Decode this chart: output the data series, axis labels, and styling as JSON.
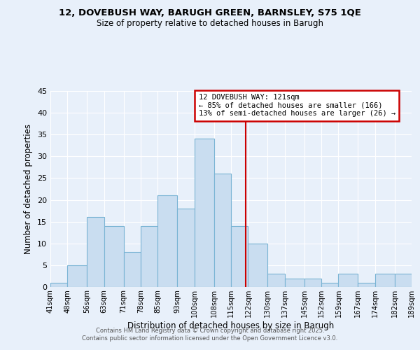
{
  "title": "12, DOVEBUSH WAY, BARUGH GREEN, BARNSLEY, S75 1QE",
  "subtitle": "Size of property relative to detached houses in Barugh",
  "xlabel": "Distribution of detached houses by size in Barugh",
  "ylabel": "Number of detached properties",
  "bin_edges": [
    41,
    48,
    56,
    63,
    71,
    78,
    85,
    93,
    100,
    108,
    115,
    122,
    130,
    137,
    145,
    152,
    159,
    167,
    174,
    182,
    189
  ],
  "counts": [
    1,
    5,
    16,
    14,
    8,
    14,
    21,
    18,
    34,
    26,
    14,
    10,
    3,
    2,
    2,
    1,
    3,
    1,
    3,
    3
  ],
  "bar_color": "#c9ddf0",
  "bar_edge_color": "#7ab4d4",
  "vline_x": 121,
  "vline_color": "#cc0000",
  "annotation_lines": [
    "12 DOVEBUSH WAY: 121sqm",
    "← 85% of detached houses are smaller (166)",
    "13% of semi-detached houses are larger (26) →"
  ],
  "annotation_box_color": "#cc0000",
  "annotation_fill": "#ffffff",
  "tick_labels": [
    "41sqm",
    "48sqm",
    "56sqm",
    "63sqm",
    "71sqm",
    "78sqm",
    "85sqm",
    "93sqm",
    "100sqm",
    "108sqm",
    "115sqm",
    "122sqm",
    "130sqm",
    "137sqm",
    "145sqm",
    "152sqm",
    "159sqm",
    "167sqm",
    "174sqm",
    "182sqm",
    "189sqm"
  ],
  "ylim": [
    0,
    45
  ],
  "yticks": [
    0,
    5,
    10,
    15,
    20,
    25,
    30,
    35,
    40,
    45
  ],
  "background_color": "#e8f0fa",
  "grid_color": "#ffffff",
  "footer_line1": "Contains HM Land Registry data © Crown copyright and database right 2025.",
  "footer_line2": "Contains public sector information licensed under the Open Government Licence v3.0."
}
